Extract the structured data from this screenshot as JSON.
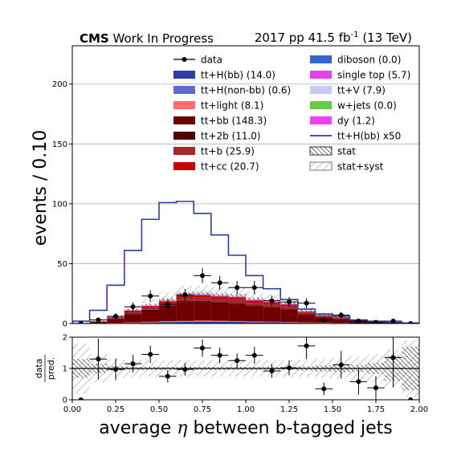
{
  "chart_data": [
    {
      "type": "bar",
      "panel": "main",
      "title_bold": "CMS",
      "title_rest": "Work In Progress",
      "title_right": "2017 pp 41.5 fb",
      "title_right_sup": "-1",
      "title_right_tail": "(13 TeV)",
      "ylabel": "events / 0.10",
      "xlim": [
        0,
        2
      ],
      "ylim": [
        0,
        232
      ],
      "yticks": [
        "0",
        "50",
        "100",
        "150",
        "200"
      ],
      "ytick_values": [
        0,
        50,
        100,
        150,
        200
      ],
      "grid": "horizontal",
      "legend_placement": "top-right",
      "bin_edges": [
        0.0,
        0.1,
        0.2,
        0.3,
        0.4,
        0.5,
        0.6,
        0.7,
        0.8,
        0.9,
        1.0,
        1.1,
        1.2,
        1.3,
        1.4,
        1.5,
        1.6,
        1.7,
        1.8,
        1.9,
        2.0
      ],
      "stack": [
        {
          "name": "tt+H(bb) (14.0)",
          "color": "#2b3ea8",
          "values": [
            0.05,
            0.15,
            0.3,
            0.6,
            0.9,
            1.2,
            1.3,
            1.5,
            1.4,
            1.3,
            1.1,
            1.0,
            0.9,
            0.6,
            0.5,
            0.4,
            0.2,
            0.1,
            0.1,
            0.05
          ]
        },
        {
          "name": "tt+H(non-bb) (0.6)",
          "color": "#5c6fd1",
          "values": [
            0,
            0,
            0.01,
            0.02,
            0.03,
            0.05,
            0.06,
            0.06,
            0.06,
            0.05,
            0.05,
            0.04,
            0.03,
            0.03,
            0.02,
            0.02,
            0.01,
            0.01,
            0,
            0
          ]
        },
        {
          "name": "tt+light (8.1)",
          "color": "#ff6b6b",
          "values": [
            0.02,
            0.1,
            0.2,
            0.4,
            0.5,
            0.7,
            0.8,
            0.9,
            0.8,
            0.7,
            0.6,
            0.5,
            0.4,
            0.3,
            0.2,
            0.1,
            0.05,
            0.03,
            0.02,
            0.01
          ]
        },
        {
          "name": "tt+bb (148.3)",
          "color": "#6e0000",
          "values": [
            0.3,
            1.2,
            3.3,
            6.9,
            9.3,
            11.8,
            15.4,
            15.2,
            14.5,
            14.2,
            12.4,
            11.6,
            10.3,
            6.4,
            4.4,
            3.3,
            1.7,
            1.0,
            0.6,
            0.2
          ]
        },
        {
          "name": "tt+2b (11.0)",
          "color": "#520000",
          "values": [
            0.03,
            0.12,
            0.3,
            0.6,
            0.8,
            1.0,
            1.2,
            1.2,
            1.1,
            1.0,
            0.9,
            0.8,
            0.7,
            0.4,
            0.3,
            0.2,
            0.1,
            0.06,
            0.03,
            0.01
          ]
        },
        {
          "name": "tt+b (25.9)",
          "color": "#a52a2a",
          "values": [
            0.05,
            0.2,
            0.6,
            1.2,
            1.6,
            2.1,
            2.7,
            2.7,
            2.6,
            2.6,
            2.3,
            2.1,
            1.9,
            1.2,
            0.8,
            0.6,
            0.3,
            0.2,
            0.1,
            0.04
          ]
        },
        {
          "name": "tt+cc (20.7)",
          "color": "#cc0000",
          "values": [
            0.05,
            0.15,
            0.5,
            1.0,
            1.3,
            1.7,
            2.1,
            2.1,
            2.0,
            2.0,
            1.8,
            1.7,
            1.5,
            1.0,
            0.7,
            0.5,
            0.3,
            0.2,
            0.1,
            0.04
          ]
        },
        {
          "name": "diboson (0.0)",
          "color": "#3366cc",
          "values": [
            0,
            0,
            0,
            0,
            0,
            0,
            0,
            0,
            0,
            0,
            0,
            0,
            0,
            0,
            0,
            0,
            0,
            0,
            0,
            0
          ]
        },
        {
          "name": "single top (5.7)",
          "color": "#e83fe8",
          "values": [
            0.01,
            0.05,
            0.15,
            0.3,
            0.4,
            0.5,
            0.6,
            0.6,
            0.6,
            0.55,
            0.5,
            0.45,
            0.4,
            0.25,
            0.18,
            0.12,
            0.06,
            0.03,
            0.02,
            0.01
          ]
        },
        {
          "name": "tt+V (7.9)",
          "color": "#c9c9f5",
          "values": [
            0.02,
            0.08,
            0.2,
            0.4,
            0.55,
            0.7,
            0.85,
            0.85,
            0.8,
            0.75,
            0.7,
            0.6,
            0.55,
            0.35,
            0.25,
            0.15,
            0.1,
            0.05,
            0.03,
            0.01
          ]
        },
        {
          "name": "w+jets (0.0)",
          "color": "#66cc44",
          "values": [
            0,
            0,
            0,
            0,
            0,
            0,
            0,
            0,
            0,
            0,
            0,
            0,
            0,
            0,
            0,
            0,
            0,
            0,
            0,
            0
          ]
        },
        {
          "name": "dy (1.2)",
          "color": "#f040f0",
          "values": [
            0,
            0.01,
            0.03,
            0.06,
            0.08,
            0.1,
            0.12,
            0.12,
            0.11,
            0.1,
            0.1,
            0.09,
            0.08,
            0.05,
            0.04,
            0.03,
            0.02,
            0.01,
            0,
            0
          ]
        }
      ],
      "signal_overlay": {
        "name": "tt+H(bb) x50",
        "color": "#2b3ea8",
        "values": [
          2,
          11,
          32,
          61,
          87,
          101,
          102,
          92,
          74,
          57,
          40,
          29,
          20,
          12,
          8,
          6,
          3,
          2,
          1,
          0.5
        ]
      },
      "data": {
        "name": "data",
        "color": "#000000",
        "x": [
          0.05,
          0.15,
          0.25,
          0.35,
          0.45,
          0.55,
          0.65,
          0.75,
          0.85,
          0.95,
          1.05,
          1.15,
          1.25,
          1.35,
          1.45,
          1.55,
          1.65,
          1.75,
          1.85,
          1.95
        ],
        "y": [
          0,
          3,
          6,
          14,
          23,
          16,
          24,
          40,
          34,
          30,
          30,
          19,
          18,
          17,
          3,
          7,
          2,
          1,
          2,
          0
        ],
        "yerr": [
          1,
          1.7,
          2.4,
          3.7,
          4.8,
          4,
          4.9,
          6.3,
          5.8,
          5.5,
          5.5,
          4.4,
          4.2,
          4.1,
          1.7,
          2.6,
          1.4,
          1,
          1.4,
          1
        ]
      },
      "stat_band": {
        "name": "stat",
        "up": [
          0.8,
          2.3,
          6.0,
          12.3,
          16.5,
          21.2,
          26.3,
          26.5,
          25.4,
          24.8,
          21.8,
          20.2,
          17.9,
          11.8,
          8.3,
          6.2,
          3.2,
          2.0,
          1.4,
          0.6
        ],
        "down": [
          0.3,
          1.7,
          5.1,
          11.2,
          15.1,
          19.3,
          24.0,
          24.1,
          23.0,
          22.5,
          19.6,
          18.3,
          16.2,
          10.2,
          6.8,
          4.9,
          2.5,
          1.4,
          0.6,
          0.1
        ]
      },
      "syst_band": {
        "name": "stat+syst",
        "up": [
          1.0,
          3.0,
          7.2,
          15.0,
          20.2,
          25.8,
          31.8,
          31.8,
          30.5,
          29.8,
          26.2,
          24.4,
          21.6,
          14.0,
          9.8,
          7.4,
          3.9,
          2.4,
          1.8,
          0.8
        ],
        "down": [
          0.1,
          1.0,
          3.9,
          8.6,
          11.4,
          14.7,
          18.5,
          18.7,
          17.9,
          17.5,
          15.2,
          13.9,
          12.4,
          8.0,
          5.3,
          3.7,
          1.8,
          0.9,
          0.2,
          0
        ]
      },
      "legend_left": [
        {
          "key": "data",
          "label": "data"
        },
        {
          "key": "ttHbb",
          "label": "tt+H(bb) (14.0)"
        },
        {
          "key": "ttHnonbb",
          "label": "tt+H(non-bb) (0.6)"
        },
        {
          "key": "ttlight",
          "label": "tt+light (8.1)"
        },
        {
          "key": "ttbb",
          "label": "tt+bb (148.3)"
        },
        {
          "key": "tt2b",
          "label": "tt+2b (11.0)"
        },
        {
          "key": "ttb",
          "label": "tt+b (25.9)"
        },
        {
          "key": "ttcc",
          "label": "tt+cc (20.7)"
        }
      ],
      "legend_right": [
        {
          "key": "diboson",
          "label": "diboson (0.0)"
        },
        {
          "key": "singletop",
          "label": "single top (5.7)"
        },
        {
          "key": "ttV",
          "label": "tt+V (7.9)"
        },
        {
          "key": "wjets",
          "label": "w+jets (0.0)"
        },
        {
          "key": "dy",
          "label": "dy (1.2)"
        },
        {
          "key": "signal",
          "label": "tt+H(bb) x50"
        },
        {
          "key": "stat",
          "label": "stat"
        },
        {
          "key": "statsyst",
          "label": "stat+syst"
        }
      ]
    },
    {
      "type": "scatter",
      "panel": "ratio",
      "ylabel_top": "data",
      "ylabel_bottom": "pred.",
      "xlabel_pre": "average",
      "xlabel_sym": "η",
      "xlabel_post": "between b-tagged jets",
      "xlim": [
        0,
        2
      ],
      "ylim": [
        0,
        2
      ],
      "yticks": [
        "0",
        "1",
        "2"
      ],
      "ytick_values": [
        0,
        1,
        2
      ],
      "xticks": [
        "0.00",
        "0.25",
        "0.50",
        "0.75",
        "1.00",
        "1.25",
        "1.50",
        "1.75",
        "2.00"
      ],
      "xtick_values": [
        0,
        0.25,
        0.5,
        0.75,
        1,
        1.25,
        1.5,
        1.75,
        2
      ],
      "reference_line": 1,
      "x": [
        0.05,
        0.15,
        0.25,
        0.35,
        0.45,
        0.55,
        0.65,
        0.75,
        0.85,
        0.95,
        1.05,
        1.15,
        1.25,
        1.35,
        1.45,
        1.55,
        1.65,
        1.75,
        1.85,
        1.95
      ],
      "y": [
        0,
        1.3,
        0.97,
        1.15,
        1.45,
        0.75,
        0.97,
        1.65,
        1.42,
        1.25,
        1.42,
        0.92,
        1.02,
        1.72,
        0.35,
        1.12,
        0.58,
        0.38,
        1.35,
        0
      ],
      "yerr": [
        0,
        0.65,
        0.35,
        0.28,
        0.28,
        0.2,
        0.2,
        0.28,
        0.25,
        0.23,
        0.27,
        0.22,
        0.24,
        0.42,
        0.2,
        0.44,
        0.42,
        0.38,
        0.95,
        0
      ],
      "stat_rel": [
        0.3,
        0.15,
        0.08,
        0.05,
        0.05,
        0.05,
        0.05,
        0.05,
        0.05,
        0.05,
        0.05,
        0.05,
        0.05,
        0.07,
        0.1,
        0.12,
        0.12,
        0.18,
        0.4,
        0.7
      ],
      "syst_rel": [
        0.8,
        0.45,
        0.3,
        0.27,
        0.27,
        0.27,
        0.27,
        0.26,
        0.26,
        0.26,
        0.26,
        0.27,
        0.27,
        0.27,
        0.3,
        0.33,
        0.38,
        0.45,
        0.6,
        0.9
      ]
    }
  ]
}
